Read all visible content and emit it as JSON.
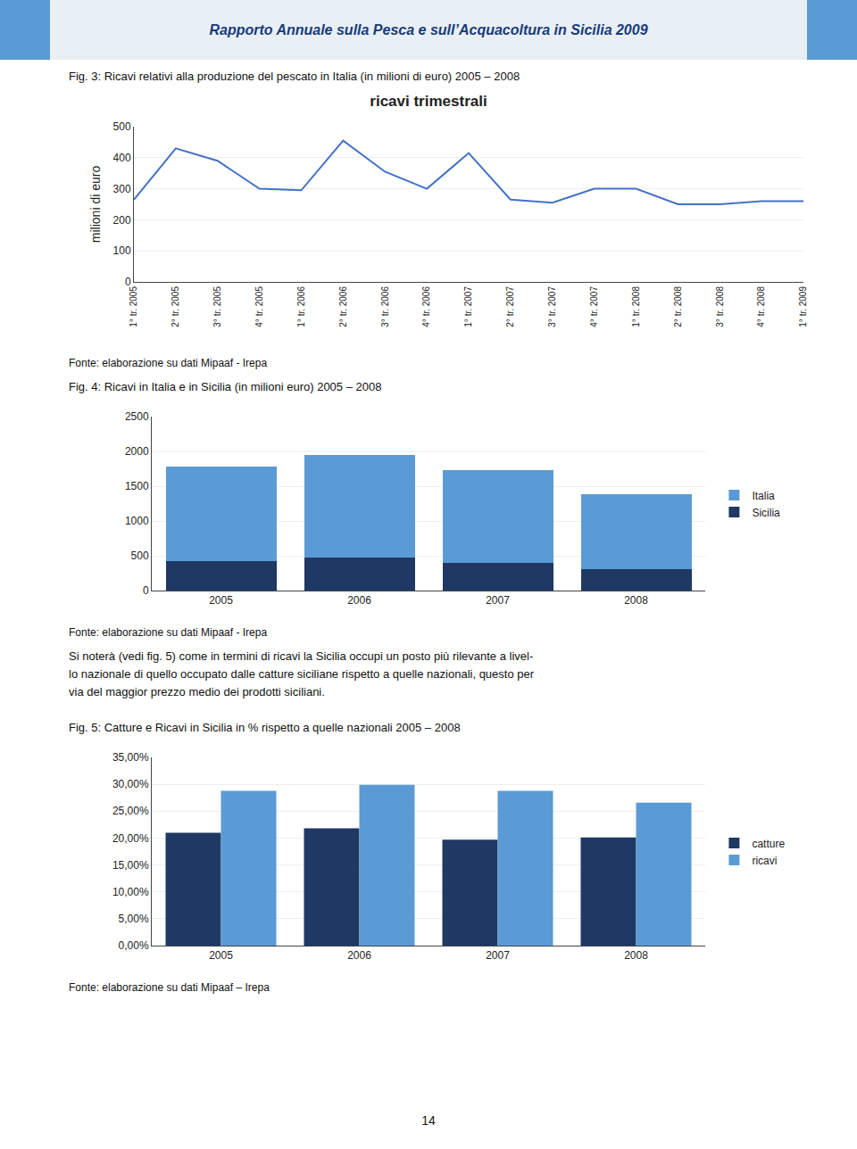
{
  "title": "Rapporto Annuale sulla Pesca e sull’Acquacoltura in Sicilia 2009",
  "annotations": [
    "Si noterà (vedi fig. 5) come in termini di ricavi la Sicilia occupi un posto più rilevante a livel-",
    "lo nazionale di quello occupato dalle catture siciliane rispetto a quelle nazionali, questo per",
    "via del maggior prezzo medio dei prodotti siciliani.",
    "14"
  ],
  "chart_data": [
    {
      "type": "line",
      "title": "ricavi trimestrali",
      "annotations": [
        "Fig. 3: Ricavi relativi alla produzione del pescato in Italia (in milioni di euro) 2005 – 2008",
        "Fonte: elaborazione su dati Mipaaf - Irepa"
      ],
      "ylabel": "milioni di euro",
      "categories": [
        "1° tr. 2005",
        "2° tr. 2005",
        "3° tr. 2005",
        "4° tr. 2005",
        "1° tr. 2006",
        "2° tr. 2006",
        "3° tr. 2006",
        "4° tr. 2006",
        "1° tr. 2007",
        "2° tr. 2007",
        "3° tr. 2007",
        "4° tr. 2007",
        "1° tr. 2008",
        "2° tr. 2008",
        "3° tr. 2008",
        "4° tr. 2008",
        "1° tr. 2009"
      ],
      "values": [
        265,
        430,
        390,
        300,
        295,
        455,
        355,
        300,
        415,
        265,
        255,
        300,
        300,
        250,
        250,
        260,
        260
      ],
      "color": "#4472c4",
      "ylim": [
        0,
        500
      ],
      "yticks": [
        0,
        100,
        200,
        300,
        400,
        500
      ],
      "grid": true
    },
    {
      "type": "bar",
      "annotations": [
        "Fig. 4: Ricavi in Italia e in Sicilia (in milioni euro) 2005 – 2008",
        "Fonte: elaborazione su dati Mipaaf - Irepa"
      ],
      "categories": [
        "2005",
        "2006",
        "2007",
        "2008"
      ],
      "series": [
        {
          "name": "Sicilia",
          "color": "#1f3864",
          "values": [
            420,
            470,
            400,
            305
          ]
        },
        {
          "name": "Italia",
          "color": "#5b9bd5",
          "values": [
            1360,
            1480,
            1330,
            1085
          ]
        }
      ],
      "stacked": true,
      "ylim": [
        0,
        2500
      ],
      "yticks": [
        0,
        500,
        1000,
        1500,
        2000,
        2500
      ],
      "grid": true,
      "legend": "right"
    },
    {
      "type": "bar",
      "annotations": [
        "Fig. 5: Catture e Ricavi in Sicilia in % rispetto a quelle nazionali 2005 – 2008",
        "Fonte: elaborazione su dati Mipaaf – Irepa"
      ],
      "categories": [
        "2005",
        "2006",
        "2007",
        "2008"
      ],
      "series": [
        {
          "name": "catture",
          "color": "#1f3864",
          "values": [
            0.21,
            0.218,
            0.197,
            0.201
          ]
        },
        {
          "name": "ricavi",
          "color": "#5b9bd5",
          "values": [
            0.288,
            0.299,
            0.288,
            0.266
          ]
        }
      ],
      "ylim": [
        0,
        0.35
      ],
      "yticks": [
        {
          "value": 0,
          "label": "0,00%"
        },
        {
          "value": 0.05,
          "label": "5,00%"
        },
        {
          "value": 0.1,
          "label": "10,00%"
        },
        {
          "value": 0.15,
          "label": "15,00%"
        },
        {
          "value": 0.2,
          "label": "20,00%"
        },
        {
          "value": 0.25,
          "label": "25,00%"
        },
        {
          "value": 0.3,
          "label": "30,00%"
        },
        {
          "value": 0.35,
          "label": "35,00%"
        }
      ],
      "grid": true,
      "legend": "right"
    }
  ]
}
